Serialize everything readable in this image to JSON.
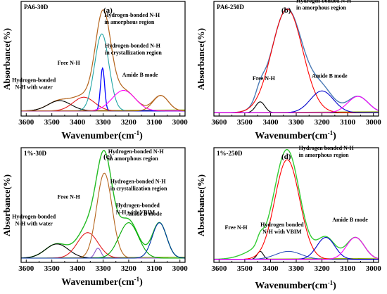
{
  "figure": {
    "xlabel_main": "Wavenumber(cm",
    "xlabel_sup": "-1",
    "xlabel_close": ")",
    "ylabel": "Absorbance(%)"
  },
  "chart_data": [
    {
      "type": "line",
      "panel_label": "(a)",
      "sample_label": "PA6-30D",
      "xlabel": "Wavenumber(cm-1)",
      "ylabel": "Absorbance(%)",
      "x_ticks": [
        3600,
        3500,
        3400,
        3300,
        3200,
        3100,
        3000
      ],
      "xlim": [
        3620,
        2980
      ],
      "x_reversed": true,
      "baseline": 0.0,
      "series": [
        {
          "color": "#b5651d",
          "width": 1.2,
          "kind": "sum",
          "peaks": [
            [
              3470,
              0.06,
              45
            ],
            [
              3375,
              0.08,
              42
            ],
            [
              3300,
              0.55,
              30
            ],
            [
              3220,
              0.12,
              45
            ],
            [
              3075,
              0.09,
              30
            ]
          ]
        },
        {
          "color": "#000000",
          "width": 1.1,
          "kind": "peak",
          "peaks": [
            [
              3470,
              0.06,
              45
            ]
          ]
        },
        {
          "color": "#e41a1c",
          "width": 1.1,
          "kind": "peak",
          "peaks": [
            [
              3375,
              0.08,
              42
            ]
          ]
        },
        {
          "color": "#20a5a5",
          "width": 1.1,
          "kind": "peak",
          "peaks": [
            [
              3305,
              0.45,
              28
            ]
          ]
        },
        {
          "color": "#0000ff",
          "width": 1.3,
          "kind": "peak",
          "peaks": [
            [
              3302,
              0.25,
              8
            ]
          ]
        },
        {
          "color": "#ff00ff",
          "width": 1.1,
          "kind": "peak",
          "peaks": [
            [
              3220,
              0.12,
              45
            ]
          ]
        },
        {
          "color": "#b5651d",
          "width": 1.1,
          "kind": "peak",
          "peaks": [
            [
              3075,
              0.09,
              30
            ]
          ]
        }
      ],
      "annotations": [
        {
          "lines": [
            "Hydrogen-bonded N-H",
            "in amorphous region"
          ],
          "pos": [
            3295,
            0.55
          ]
        },
        {
          "lines": [
            "Hydrogen-bonded N-H",
            "in crystallization region"
          ],
          "pos": [
            3293,
            0.37
          ]
        },
        {
          "lines": [
            "Free N-H"
          ],
          "pos": [
            3390,
            0.27
          ]
        },
        {
          "lines": [
            "Amide B mode"
          ],
          "pos": [
            3225,
            0.2
          ]
        },
        {
          "lines": [
            "Hydrogen-bonded",
            "N-H with water"
          ],
          "pos": [
            3570,
            0.17
          ]
        }
      ],
      "ylim": [
        -0.03,
        0.64
      ]
    },
    {
      "type": "line",
      "panel_label": "(b)",
      "sample_label": "PA6-250D",
      "xlabel": "Wavenumber(cm-1)",
      "ylabel": "Absorbance(%)",
      "x_ticks": [
        3600,
        3500,
        3400,
        3300,
        3200,
        3100,
        3000
      ],
      "xlim": [
        3620,
        2980
      ],
      "x_reversed": true,
      "baseline": 0.0,
      "series": [
        {
          "color": "#4a7ab5",
          "width": 1.4,
          "kind": "sum",
          "peaks": [
            [
              3440,
              0.1,
              18
            ],
            [
              3335,
              0.95,
              60
            ],
            [
              3200,
              0.2,
              45
            ],
            [
              3060,
              0.15,
              40
            ]
          ]
        },
        {
          "color": "#000000",
          "width": 1.1,
          "kind": "peak",
          "peaks": [
            [
              3440,
              0.1,
              18
            ]
          ]
        },
        {
          "color": "#ff0000",
          "width": 1.1,
          "kind": "peak",
          "peaks": [
            [
              3335,
              0.95,
              60
            ]
          ]
        },
        {
          "color": "#0000cc",
          "width": 1.1,
          "kind": "peak",
          "peaks": [
            [
              3200,
              0.2,
              45
            ]
          ]
        },
        {
          "color": "#ff00ff",
          "width": 1.1,
          "kind": "peak",
          "peaks": [
            [
              3060,
              0.15,
              40
            ]
          ]
        }
      ],
      "annotations": [
        {
          "lines": [
            "Hydrogen bonded N-H",
            "in amorphous region"
          ],
          "pos": [
            3300,
            1.01
          ]
        },
        {
          "lines": [
            "Free N-H"
          ],
          "pos": [
            3470,
            0.3
          ]
        },
        {
          "lines": [
            "Amide B mode"
          ],
          "pos": [
            3240,
            0.32
          ]
        }
      ],
      "ylim": [
        -0.03,
        1.02
      ]
    },
    {
      "type": "line",
      "panel_label": "(c)",
      "sample_label": "1%-30D",
      "xlabel": "Wavenumber(cm-1)",
      "ylabel": "Absorbance(%)",
      "x_ticks": [
        3600,
        3500,
        3400,
        3300,
        3200,
        3100,
        3000
      ],
      "xlim": [
        3620,
        2980
      ],
      "x_reversed": true,
      "baseline": 0.0,
      "series": [
        {
          "color": "#22bb22",
          "width": 1.4,
          "kind": "sum",
          "peaks": [
            [
              3480,
              0.1,
              45
            ],
            [
              3360,
              0.18,
              40
            ],
            [
              3295,
              0.6,
              30
            ],
            [
              3295,
              0.1,
              55
            ],
            [
              3200,
              0.25,
              38
            ],
            [
              3080,
              0.25,
              28
            ]
          ]
        },
        {
          "color": "#000000",
          "width": 1.1,
          "kind": "peak",
          "peaks": [
            [
              3480,
              0.1,
              45
            ]
          ]
        },
        {
          "color": "#e41a1c",
          "width": 1.1,
          "kind": "peak",
          "peaks": [
            [
              3360,
              0.18,
              40
            ]
          ]
        },
        {
          "color": "#b5651d",
          "width": 1.1,
          "kind": "peak",
          "peaks": [
            [
              3295,
              0.6,
              30
            ]
          ]
        },
        {
          "color": "#8855cc",
          "width": 1.1,
          "kind": "peak",
          "peaks": [
            [
              3320,
              0.07,
              12
            ]
          ]
        },
        {
          "color": "#00aa00",
          "width": 1.1,
          "kind": "peak",
          "peaks": [
            [
              3200,
              0.25,
              38
            ]
          ]
        },
        {
          "color": "#0033aa",
          "width": 1.1,
          "kind": "peak",
          "peaks": [
            [
              3080,
              0.25,
              28
            ]
          ]
        }
      ],
      "annotations": [
        {
          "lines": [
            "Hydrogen-bonded N-H",
            "in amorphous region"
          ],
          "pos": [
            3280,
            0.74
          ]
        },
        {
          "lines": [
            "Hydrogen-bonded N-H",
            "in crystallization region"
          ],
          "pos": [
            3272,
            0.53
          ]
        },
        {
          "lines": [
            "Free N-H"
          ],
          "pos": [
            3390,
            0.42
          ]
        },
        {
          "lines": [
            "Hydrogen-bonded",
            "N-H with VBIM"
          ],
          "pos": [
            3250,
            0.36
          ]
        },
        {
          "lines": [
            "Amide B mode"
          ],
          "pos": [
            3210,
            0.3
          ]
        },
        {
          "lines": [
            "Hydrogen-bonded",
            "N-H with water"
          ],
          "pos": [
            3570,
            0.28
          ]
        }
      ],
      "ylim": [
        -0.03,
        0.78
      ]
    },
    {
      "type": "line",
      "panel_label": "(d)",
      "sample_label": "1%-250D",
      "xlabel": "Wavenumber(cm-1)",
      "ylabel": "Absorbance(%)",
      "x_ticks": [
        3600,
        3500,
        3400,
        3300,
        3200,
        3100,
        3000
      ],
      "xlim": [
        3620,
        2980
      ],
      "x_reversed": true,
      "baseline": 0.0,
      "series": [
        {
          "color": "#33cc33",
          "width": 1.4,
          "kind": "sum",
          "peaks": [
            [
              3440,
              0.08,
              12
            ],
            [
              3335,
              1.0,
              48
            ],
            [
              3330,
              0.08,
              50
            ],
            [
              3185,
              0.22,
              35
            ],
            [
              3070,
              0.22,
              35
            ],
            [
              3440,
              0.1,
              60
            ]
          ]
        },
        {
          "color": "#000000",
          "width": 1.1,
          "kind": "peak",
          "peaks": [
            [
              3440,
              0.08,
              12
            ]
          ]
        },
        {
          "color": "#ff0000",
          "width": 1.1,
          "kind": "peak",
          "peaks": [
            [
              3335,
              1.0,
              48
            ]
          ]
        },
        {
          "color": "#3355bb",
          "width": 1.1,
          "kind": "peak",
          "peaks": [
            [
              3330,
              0.08,
              50
            ]
          ]
        },
        {
          "color": "#0000cc",
          "width": 1.1,
          "kind": "peak",
          "peaks": [
            [
              3185,
              0.22,
              35
            ]
          ]
        },
        {
          "color": "#ff00ff",
          "width": 1.1,
          "kind": "peak",
          "peaks": [
            [
              3070,
              0.22,
              35
            ]
          ]
        }
      ],
      "annotations": [
        {
          "lines": [
            "Hydrogen bonded N-H",
            "in amorphous region"
          ],
          "pos": [
            3290,
            1.1
          ]
        },
        {
          "lines": [
            "Free N-H"
          ],
          "pos": [
            3490,
            0.3
          ]
        },
        {
          "lines": [
            "Hydrogen bonded",
            "N-H with VBIM"
          ],
          "pos": [
            3355,
            0.33
          ]
        },
        {
          "lines": [
            "Amide B mode"
          ],
          "pos": [
            3160,
            0.38
          ]
        }
      ],
      "ylim": [
        -0.03,
        1.12
      ]
    }
  ]
}
